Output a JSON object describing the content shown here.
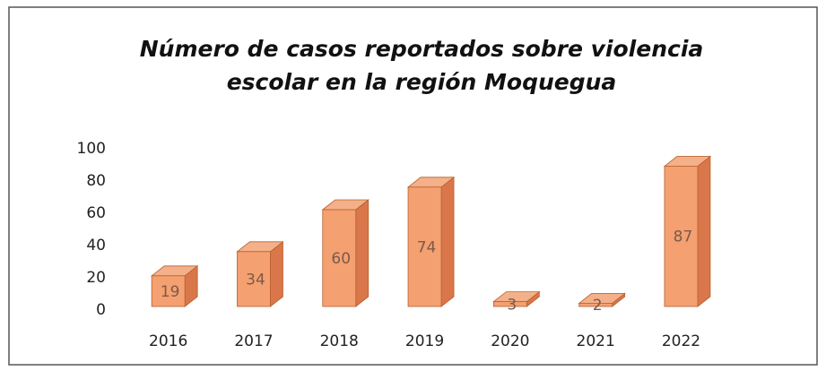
{
  "chart_data": {
    "type": "bar3d",
    "title": "Número de casos reportados sobre violencia escolar en la región Moquegua",
    "categories": [
      "2016",
      "2017",
      "2018",
      "2019",
      "2020",
      "2021",
      "2022"
    ],
    "values": [
      19,
      34,
      60,
      74,
      3,
      2,
      87
    ],
    "color": "#f4a070",
    "ylim": [
      0,
      100
    ],
    "yticks": [
      0,
      20,
      40,
      60,
      80,
      100
    ],
    "grid": false
  }
}
